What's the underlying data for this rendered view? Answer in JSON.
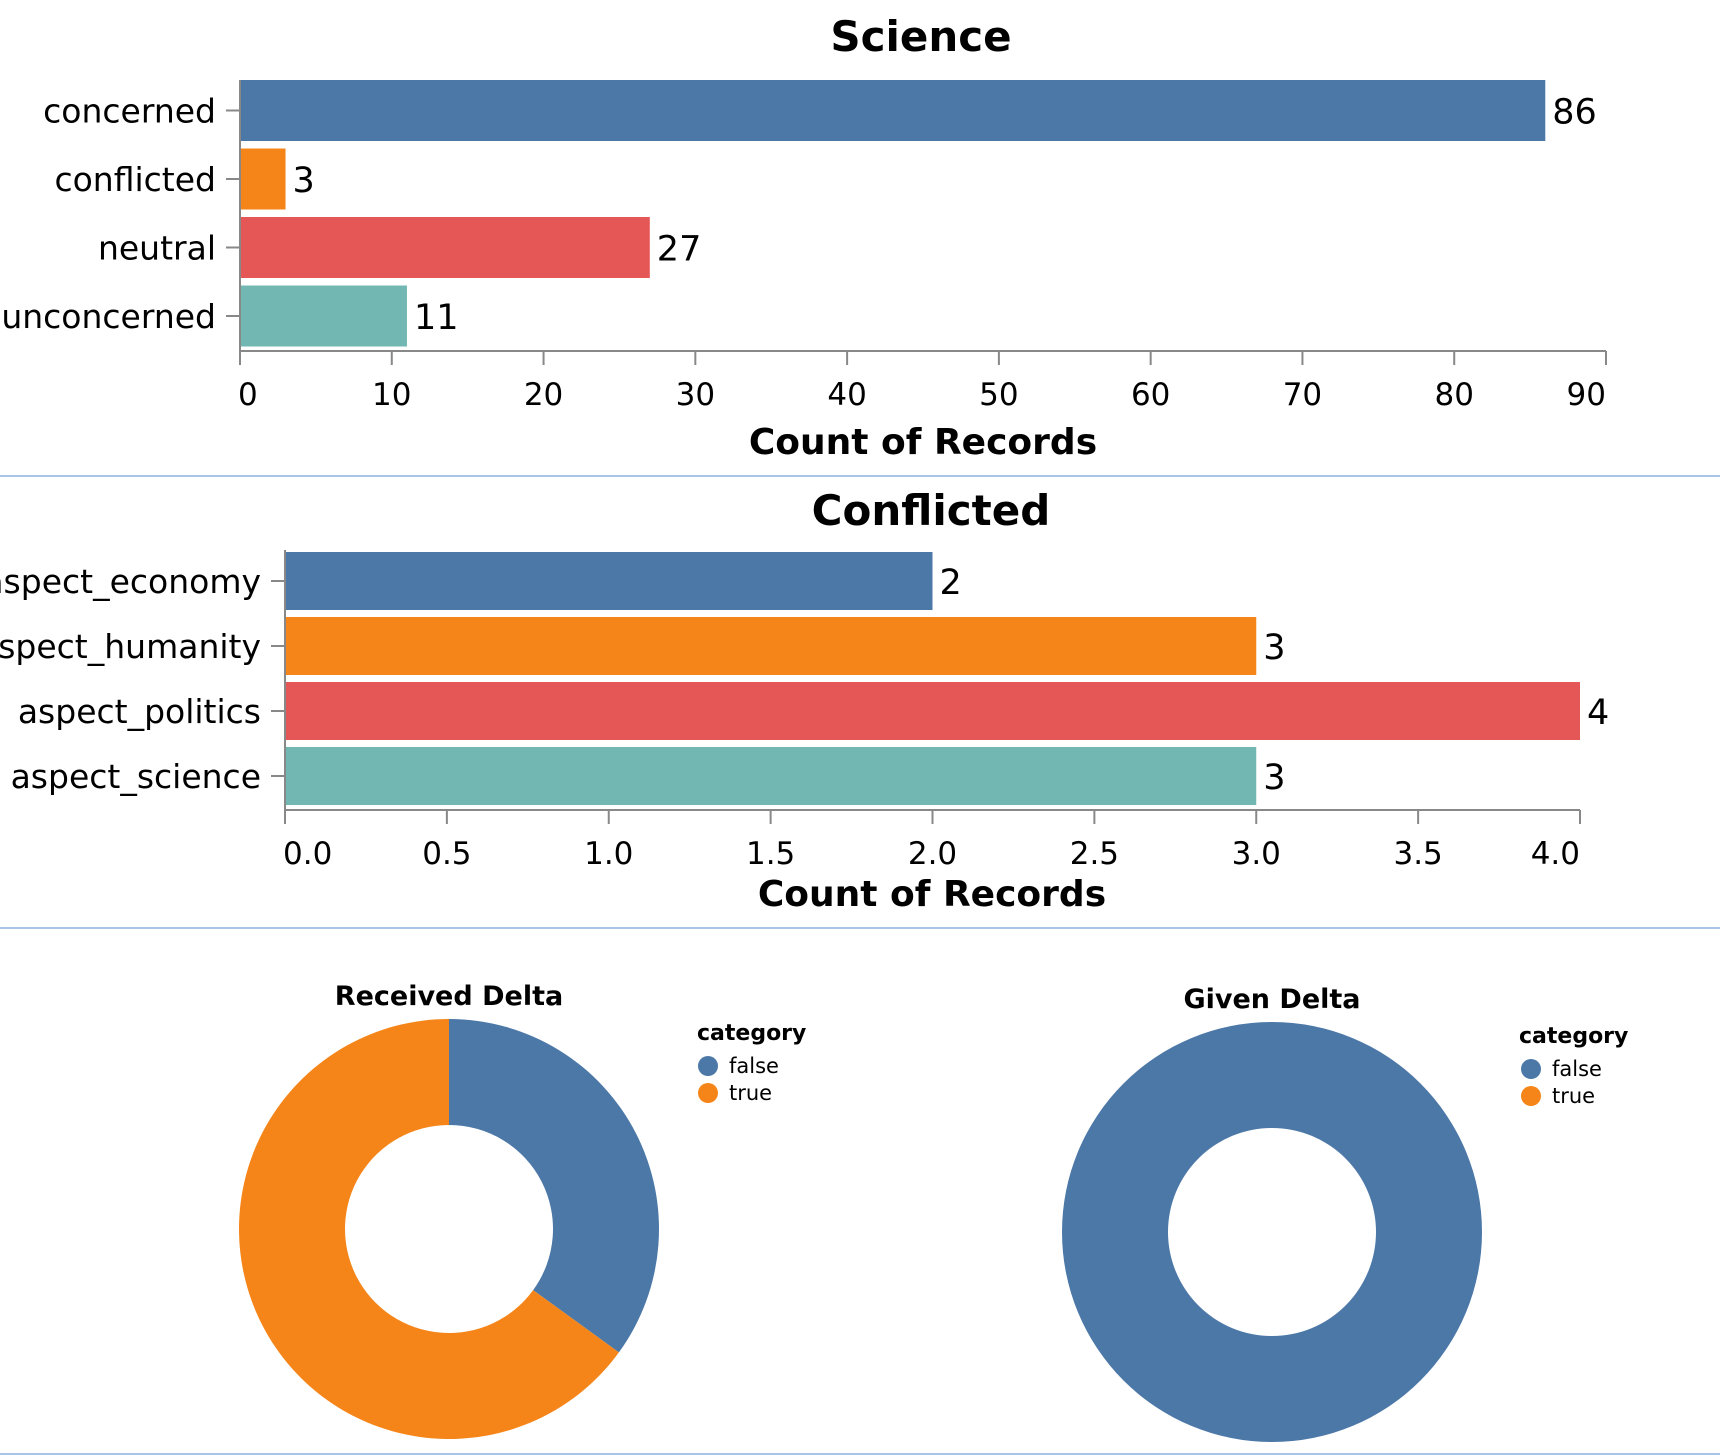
{
  "colors": {
    "blue": "#4c78a8",
    "orange": "#f58518",
    "red": "#e45756",
    "teal": "#72b7b2",
    "axis": "#888888",
    "divider": "#8bb0de"
  },
  "chart_data": [
    {
      "type": "bar",
      "orientation": "horizontal",
      "title": "Science",
      "xlabel": "Count of Records",
      "ylabel": "",
      "categories": [
        "concerned",
        "conflicted",
        "neutral",
        "unconcerned"
      ],
      "values": [
        86,
        3,
        27,
        11
      ],
      "data_labels": [
        "86",
        "3",
        "27",
        "11"
      ],
      "xlim": [
        0,
        90
      ],
      "ticks": [
        0,
        10,
        20,
        30,
        40,
        50,
        60,
        70,
        80,
        90
      ],
      "tick_labels": [
        "0",
        "10",
        "20",
        "30",
        "40",
        "50",
        "60",
        "70",
        "80",
        "90"
      ],
      "colors": [
        "#4c78a8",
        "#f58518",
        "#e45756",
        "#72b7b2"
      ],
      "grid": false
    },
    {
      "type": "bar",
      "orientation": "horizontal",
      "title": "Conflicted",
      "xlabel": "Count of Records",
      "ylabel": "",
      "categories": [
        "aspect_economy",
        "aspect_humanity",
        "aspect_politics",
        "aspect_science"
      ],
      "values": [
        2,
        3,
        4,
        3
      ],
      "data_labels": [
        "2",
        "3",
        "4",
        "3"
      ],
      "xlim": [
        0,
        4
      ],
      "ticks": [
        0,
        0.5,
        1,
        1.5,
        2,
        2.5,
        3,
        3.5,
        4
      ],
      "tick_labels": [
        "0.0",
        "0.5",
        "1.0",
        "1.5",
        "2.0",
        "2.5",
        "3.0",
        "3.5",
        "4.0"
      ],
      "colors": [
        "#4c78a8",
        "#f58518",
        "#e45756",
        "#72b7b2"
      ],
      "grid": false
    },
    {
      "type": "pie",
      "style": "donut",
      "title": "Received Delta",
      "legend_title": "category",
      "legend_position": "right",
      "categories": [
        "false",
        "true"
      ],
      "values": [
        35,
        65
      ],
      "colors": [
        "#4c78a8",
        "#f58518"
      ]
    },
    {
      "type": "pie",
      "style": "donut",
      "title": "Given Delta",
      "legend_title": "category",
      "legend_position": "right",
      "categories": [
        "false",
        "true"
      ],
      "values": [
        100,
        0
      ],
      "colors": [
        "#4c78a8",
        "#f58518"
      ]
    }
  ]
}
